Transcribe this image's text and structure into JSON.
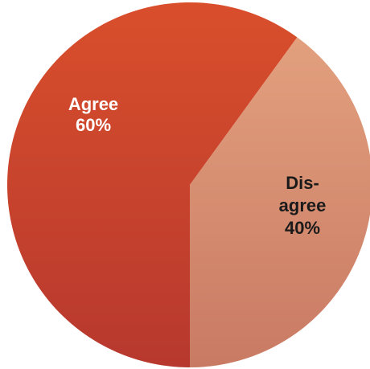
{
  "chart_data": {
    "type": "pie",
    "slices": [
      {
        "label_lines": [
          "Agree"
        ],
        "percent_label": "60%",
        "value": 60,
        "color_top": "#d94f2c",
        "color_bottom": "#b7382e",
        "label_color": "#ffffff"
      },
      {
        "label_lines": [
          "Dis-",
          "agree"
        ],
        "percent_label": "40%",
        "value": 40,
        "color_top": "#e2a07e",
        "color_bottom": "#c97a63",
        "label_color": "#1a1a1a"
      }
    ]
  }
}
